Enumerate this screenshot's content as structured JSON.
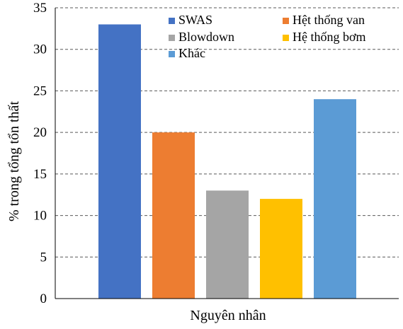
{
  "chart_data": {
    "type": "bar",
    "title": "",
    "xlabel": "Nguyên nhân",
    "ylabel": "% trong tổng tổn thất",
    "ylim": [
      0,
      35
    ],
    "yticks": [
      0,
      5,
      10,
      15,
      20,
      25,
      30,
      35
    ],
    "grid": "horizontal-dashed",
    "legend_position": "top-right",
    "categories": [
      "SWAS",
      "Hệt thống van",
      "Blowdown",
      "Hệ thống bơm",
      "Khác"
    ],
    "values": [
      33,
      20,
      13,
      12,
      24
    ],
    "colors": [
      "#4472C4",
      "#ED7D31",
      "#A5A5A5",
      "#FFC000",
      "#5B9BD5"
    ]
  }
}
